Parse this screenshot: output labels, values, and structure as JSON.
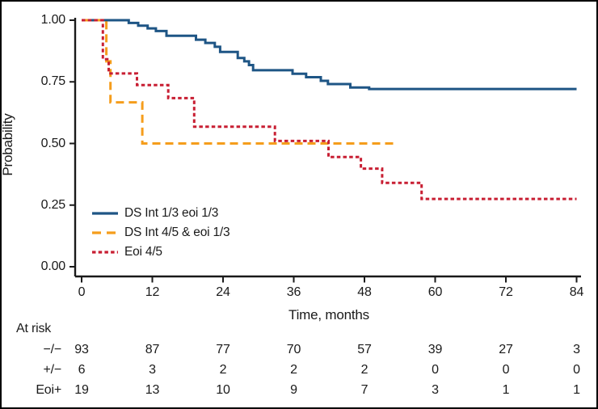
{
  "chart_data": {
    "type": "line",
    "subtype": "kaplan-meier-step",
    "title": "",
    "xlabel": "Time, months",
    "ylabel": "Probability",
    "xlim": [
      0,
      84
    ],
    "ylim": [
      0.0,
      1.0
    ],
    "x_tick_values": [
      0,
      12,
      24,
      36,
      48,
      60,
      72,
      84
    ],
    "x_tick_labels": [
      "0",
      "12",
      "24",
      "36",
      "48",
      "60",
      "72",
      "84"
    ],
    "y_tick_values": [
      0.0,
      0.25,
      0.5,
      0.75,
      1.0
    ],
    "y_tick_labels": [
      "0.00",
      "0.25",
      "0.50",
      "0.75",
      "1.00"
    ],
    "grid": false,
    "legend_position": "inside-lower-left",
    "axis_color": "#1a1a1a",
    "series": [
      {
        "name": "DS Int 1/3 eoi 1/3",
        "color": "#1e5585",
        "style": "solid",
        "end_x": 84,
        "points": [
          [
            0,
            1.0
          ],
          [
            8,
            0.989
          ],
          [
            9.6,
            0.978
          ],
          [
            11.2,
            0.967
          ],
          [
            12.6,
            0.956
          ],
          [
            14.4,
            0.937
          ],
          [
            19.4,
            0.921
          ],
          [
            21,
            0.908
          ],
          [
            22.6,
            0.892
          ],
          [
            23.5,
            0.871
          ],
          [
            26.5,
            0.847
          ],
          [
            27.6,
            0.833
          ],
          [
            28.4,
            0.818
          ],
          [
            29.1,
            0.797
          ],
          [
            35.8,
            0.783
          ],
          [
            38.1,
            0.769
          ],
          [
            40.6,
            0.754
          ],
          [
            41.8,
            0.741
          ],
          [
            45.6,
            0.727
          ],
          [
            48.8,
            0.721
          ]
        ]
      },
      {
        "name": "DS Int 4/5 & eoi 1/3",
        "color": "#f59d1c",
        "style": "dashed",
        "end_x": 53.2,
        "points": [
          [
            0,
            1.0
          ],
          [
            4.2,
            0.833
          ],
          [
            4.9,
            0.667
          ],
          [
            10.3,
            0.5
          ]
        ]
      },
      {
        "name": "Eoi 4/5",
        "color": "#c81f33",
        "style": "dotted",
        "end_x": 84,
        "points": [
          [
            0,
            1.0
          ],
          [
            3.6,
            0.842
          ],
          [
            4.6,
            0.784
          ],
          [
            9.4,
            0.737
          ],
          [
            14.7,
            0.684
          ],
          [
            19.1,
            0.568
          ],
          [
            32.8,
            0.51
          ],
          [
            41.9,
            0.445
          ],
          [
            47.4,
            0.398
          ],
          [
            51,
            0.34
          ],
          [
            57.7,
            0.275
          ]
        ]
      }
    ]
  },
  "at_risk": {
    "title": "At risk",
    "time_points": [
      0,
      12,
      24,
      36,
      48,
      60,
      72,
      84
    ],
    "rows": [
      {
        "label": "−/−",
        "counts": [
          93,
          87,
          77,
          70,
          57,
          39,
          27,
          3
        ]
      },
      {
        "label": "+/−",
        "counts": [
          6,
          3,
          2,
          2,
          2,
          0,
          0,
          0
        ]
      },
      {
        "label": "Eoi+",
        "counts": [
          19,
          13,
          10,
          9,
          7,
          3,
          1,
          1
        ]
      }
    ]
  }
}
